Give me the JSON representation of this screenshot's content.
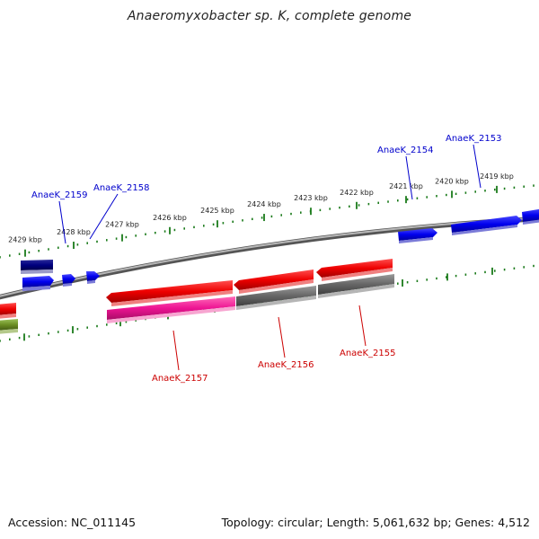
{
  "title": "Anaeromyxobacter sp. K, complete genome",
  "footer": {
    "accession": "Accession: NC_011145",
    "summary": "Topology: circular; Length: 5,061,632 bp; Genes: 4,512"
  },
  "colors": {
    "forward_gene": "#0000ee",
    "forward_gene_dark": "#000080",
    "reverse_gene": "#ee0000",
    "reverse_pink": "#ee1493",
    "reverse_gray": "#666666",
    "reverse_olive": "#6b8e23",
    "scale_tick": "#1a7a1a",
    "backbone": "#888888",
    "forward_label": "#0000cc",
    "reverse_label": "#cc0000"
  },
  "scale_labels": [
    "2429 kbp",
    "2428 kbp",
    "2427 kbp",
    "2426 kbp",
    "2425 kbp",
    "2424 kbp",
    "2423 kbp",
    "2422 kbp",
    "2421 kbp",
    "2420 kbp",
    "2419 kbp"
  ],
  "gene_labels": {
    "forward": [
      "AnaeK_2159",
      "AnaeK_2158",
      "AnaeK_2154",
      "AnaeK_2153"
    ],
    "reverse": [
      "AnaeK_2157",
      "AnaeK_2156",
      "AnaeK_2155"
    ]
  }
}
